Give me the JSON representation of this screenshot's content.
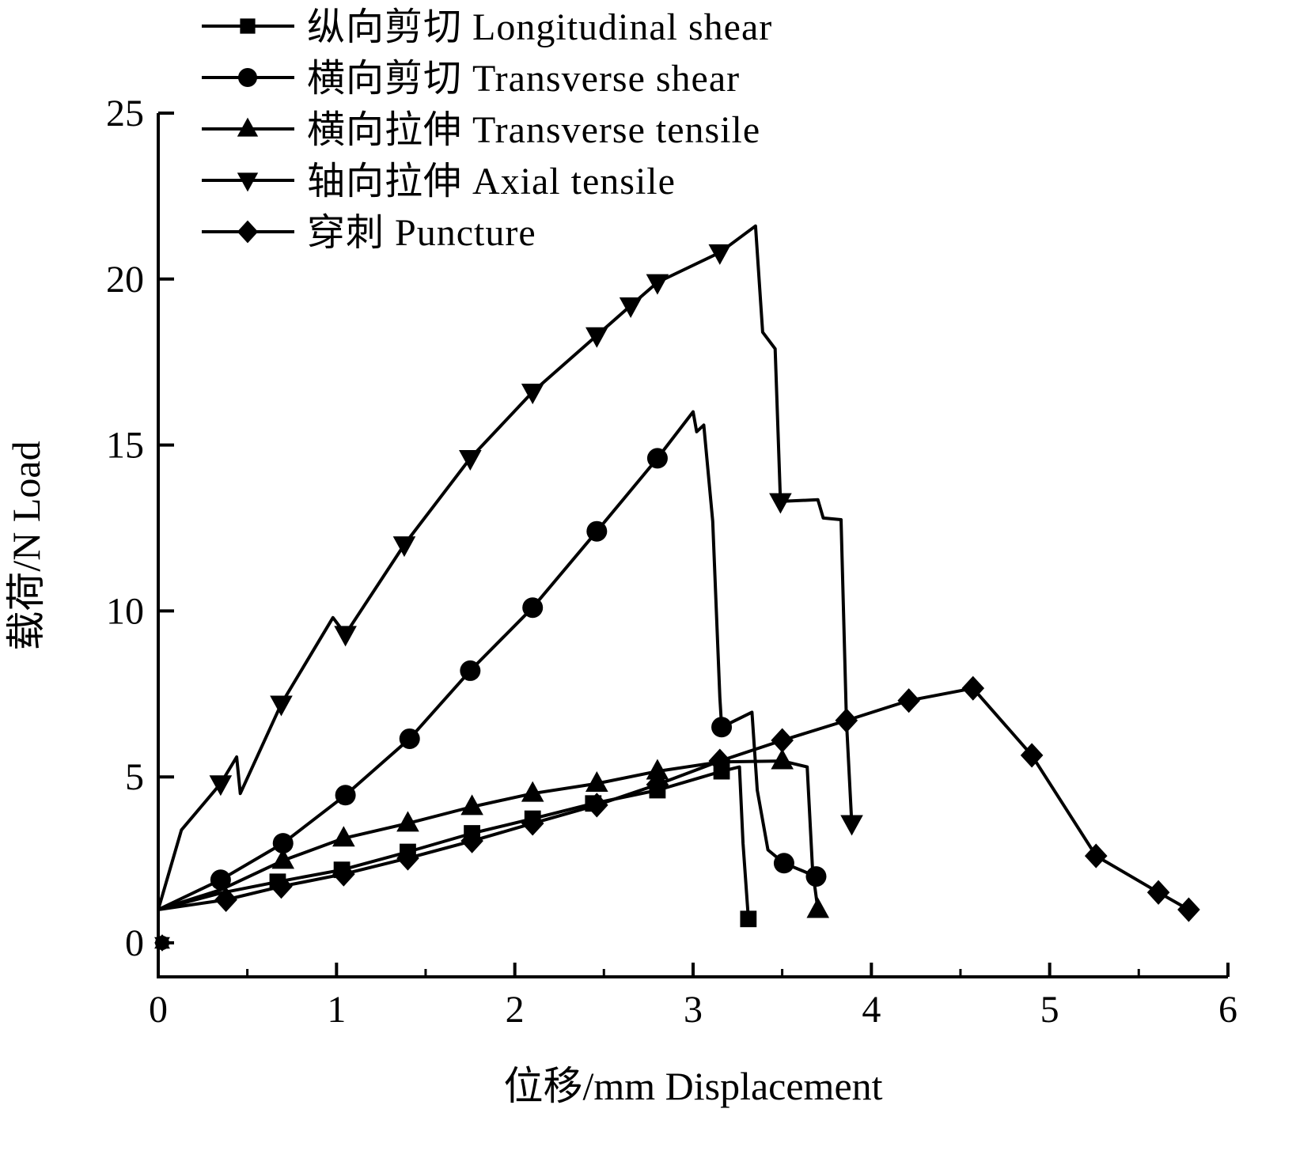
{
  "chart_data": {
    "type": "line",
    "xlabel": "位移/mm Displacement",
    "ylabel": "载荷/N Load",
    "xlim": [
      0,
      6
    ],
    "ylim": [
      0,
      25
    ],
    "xticks": [
      "0",
      "1",
      "2",
      "3",
      "4",
      "5",
      "6"
    ],
    "yticks": [
      "0",
      "5",
      "10",
      "15",
      "20",
      "25"
    ],
    "grid": false,
    "legend_position": "top-left",
    "color": "#000000",
    "series": [
      {
        "name": "纵向剪切  Longitudinal shear",
        "marker": "square",
        "x": [
          0,
          0.35,
          0.67,
          1.03,
          1.4,
          1.76,
          2.1,
          2.44,
          2.8,
          3.16,
          3.26,
          3.28,
          3.31
        ],
        "y": [
          1.0,
          1.5,
          1.84,
          2.2,
          2.74,
          3.3,
          3.74,
          4.2,
          4.6,
          5.17,
          5.3,
          3.0,
          0.72
        ],
        "marker_idx": [
          2,
          3,
          4,
          5,
          6,
          7,
          8,
          9,
          12
        ]
      },
      {
        "name": "横向剪切  Transverse shear",
        "marker": "circle",
        "x": [
          0,
          0.35,
          0.7,
          1.05,
          1.41,
          1.75,
          2.1,
          2.46,
          2.8,
          3.0,
          3.02,
          3.06,
          3.11,
          3.15,
          3.16,
          3.33,
          3.36,
          3.42,
          3.51,
          3.69
        ],
        "y": [
          1.0,
          1.9,
          3.0,
          4.45,
          6.15,
          8.2,
          10.1,
          12.4,
          14.6,
          16.0,
          15.4,
          15.6,
          12.7,
          7.4,
          6.5,
          6.95,
          4.6,
          2.8,
          2.4,
          2.0
        ],
        "marker_idx": [
          1,
          2,
          3,
          4,
          5,
          6,
          7,
          8,
          14,
          18,
          19
        ]
      },
      {
        "name": "横向拉伸  Transverse tensile",
        "marker": "triangle-up",
        "x": [
          0,
          0.35,
          0.7,
          1.04,
          1.4,
          1.76,
          2.1,
          2.46,
          2.8,
          3.15,
          3.5,
          3.64,
          3.67,
          3.7
        ],
        "y": [
          1.0,
          1.6,
          2.48,
          3.15,
          3.6,
          4.1,
          4.5,
          4.8,
          5.17,
          5.45,
          5.48,
          5.3,
          2.2,
          1.0
        ],
        "marker_idx": [
          2,
          3,
          4,
          5,
          6,
          7,
          8,
          10,
          13
        ]
      },
      {
        "name": "轴向拉伸  Axial tensile",
        "marker": "triangle-down",
        "x": [
          0,
          0.13,
          0.35,
          0.44,
          0.46,
          0.69,
          0.98,
          1.05,
          1.38,
          1.75,
          2.1,
          2.46,
          2.65,
          2.8,
          3.15,
          3.35,
          3.39,
          3.46,
          3.49,
          3.7,
          3.73,
          3.83,
          3.86,
          3.89
        ],
        "y": [
          1.0,
          3.4,
          4.8,
          5.6,
          4.5,
          7.2,
          9.8,
          9.3,
          12.0,
          14.6,
          16.6,
          18.3,
          19.2,
          19.9,
          20.8,
          21.6,
          18.4,
          17.9,
          13.3,
          13.35,
          12.8,
          12.75,
          6.7,
          3.6
        ],
        "marker_idx": [
          2,
          5,
          7,
          8,
          9,
          10,
          11,
          12,
          13,
          14,
          18,
          23
        ]
      },
      {
        "name": "穿刺  Puncture",
        "marker": "diamond",
        "x": [
          0,
          0.38,
          0.69,
          1.04,
          1.4,
          1.76,
          2.1,
          2.46,
          2.8,
          3.15,
          3.5,
          3.86,
          4.21,
          4.57,
          4.9,
          5.26,
          5.61,
          5.78
        ],
        "y": [
          1.0,
          1.3,
          1.7,
          2.07,
          2.55,
          3.07,
          3.6,
          4.15,
          4.77,
          5.48,
          6.1,
          6.7,
          7.3,
          7.67,
          5.65,
          2.62,
          1.52,
          1.0
        ],
        "marker_idx": [
          1,
          2,
          3,
          4,
          5,
          6,
          7,
          8,
          9,
          10,
          11,
          12,
          13,
          14,
          15,
          16,
          17
        ]
      }
    ]
  }
}
